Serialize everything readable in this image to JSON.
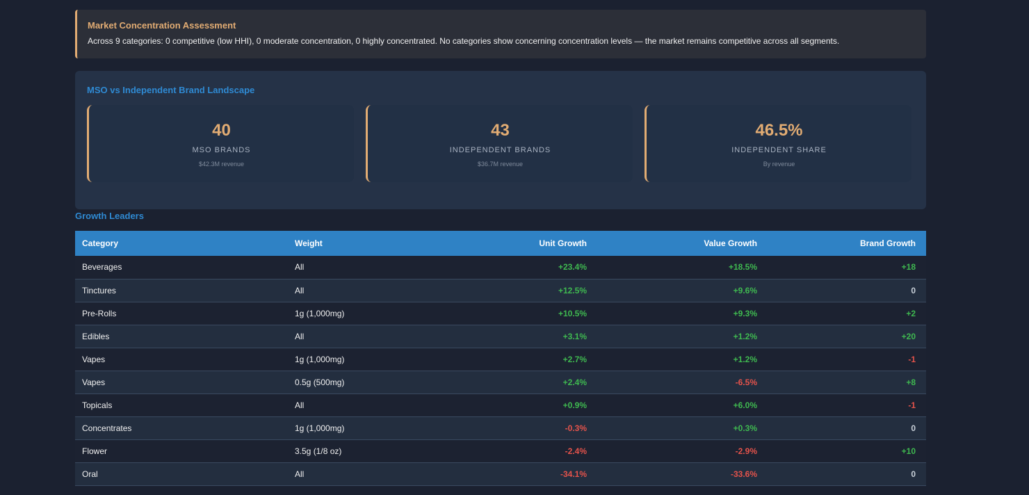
{
  "alert": {
    "title": "Market Concentration Assessment",
    "text": "Across 9 categories: 0 competitive (low HHI), 0 moderate concentration, 0 highly concentrated. No categories show concerning concentration levels — the market remains competitive across all segments."
  },
  "landscape": {
    "title": "MSO vs Independent Brand Landscape",
    "stats": [
      {
        "value": "40",
        "label": "MSO BRANDS",
        "sub": "$42.3M revenue"
      },
      {
        "value": "43",
        "label": "INDEPENDENT BRANDS",
        "sub": "$36.7M revenue"
      },
      {
        "value": "46.5%",
        "label": "INDEPENDENT SHARE",
        "sub": "By revenue"
      }
    ]
  },
  "growth": {
    "title": "Growth Leaders",
    "headers": [
      "Category",
      "Weight",
      "Unit Growth",
      "Value Growth",
      "Brand Growth"
    ],
    "rows": [
      {
        "category": "Beverages",
        "weight": "All",
        "unit": "+23.4%",
        "value": "+18.5%",
        "brand": "+18"
      },
      {
        "category": "Tinctures",
        "weight": "All",
        "unit": "+12.5%",
        "value": "+9.6%",
        "brand": "0"
      },
      {
        "category": "Pre-Rolls",
        "weight": "1g (1,000mg)",
        "unit": "+10.5%",
        "value": "+9.3%",
        "brand": "+2"
      },
      {
        "category": "Edibles",
        "weight": "All",
        "unit": "+3.1%",
        "value": "+1.2%",
        "brand": "+20"
      },
      {
        "category": "Vapes",
        "weight": "1g (1,000mg)",
        "unit": "+2.7%",
        "value": "+1.2%",
        "brand": "-1"
      },
      {
        "category": "Vapes",
        "weight": "0.5g (500mg)",
        "unit": "+2.4%",
        "value": "-6.5%",
        "brand": "+8"
      },
      {
        "category": "Topicals",
        "weight": "All",
        "unit": "+0.9%",
        "value": "+6.0%",
        "brand": "-1"
      },
      {
        "category": "Concentrates",
        "weight": "1g (1,000mg)",
        "unit": "-0.3%",
        "value": "+0.3%",
        "brand": "0"
      },
      {
        "category": "Flower",
        "weight": "3.5g (1/8 oz)",
        "unit": "-2.4%",
        "value": "-2.9%",
        "brand": "+10"
      },
      {
        "category": "Oral",
        "weight": "All",
        "unit": "-34.1%",
        "value": "-33.6%",
        "brand": "0"
      }
    ]
  },
  "colors": {
    "accent": "#e2ac73",
    "heading": "#2f8ad3",
    "positive": "#3fb950",
    "negative": "#e5534b"
  }
}
